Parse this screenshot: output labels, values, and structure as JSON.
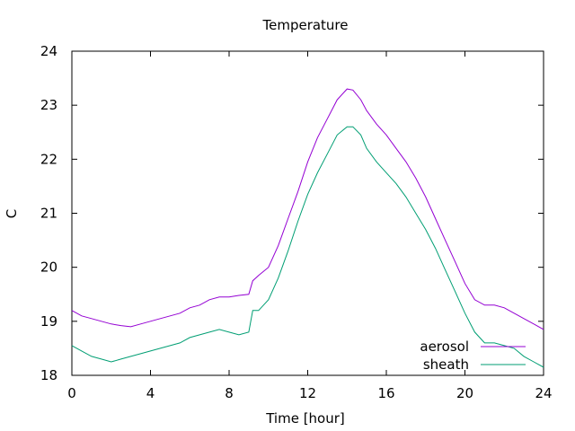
{
  "chart_data": {
    "type": "line",
    "title": "Temperature",
    "xlabel": "Time [hour]",
    "ylabel": "C",
    "xlim": [
      0,
      24
    ],
    "ylim": [
      18,
      24
    ],
    "xticks": [
      0,
      4,
      8,
      12,
      16,
      20,
      24
    ],
    "yticks": [
      18,
      19,
      20,
      21,
      22,
      23,
      24
    ],
    "grid": false,
    "legend_position": "bottom-right",
    "series": [
      {
        "name": "aerosol",
        "color": "#9400d3",
        "x": [
          0,
          0.5,
          1,
          1.5,
          2,
          2.5,
          3,
          3.5,
          4,
          4.5,
          5,
          5.5,
          6,
          6.5,
          7,
          7.5,
          8,
          8.5,
          9,
          9.2,
          9.5,
          10,
          10.5,
          11,
          11.5,
          12,
          12.5,
          13,
          13.5,
          14,
          14.3,
          14.7,
          15,
          15.5,
          16,
          16.5,
          17,
          17.5,
          18,
          18.5,
          19,
          19.5,
          20,
          20.5,
          21,
          21.5,
          22,
          22.5,
          23,
          23.5,
          24
        ],
        "y": [
          19.2,
          19.1,
          19.05,
          19.0,
          18.95,
          18.92,
          18.9,
          18.95,
          19.0,
          19.05,
          19.1,
          19.15,
          19.25,
          19.3,
          19.4,
          19.45,
          19.45,
          19.48,
          19.5,
          19.75,
          19.85,
          20.0,
          20.4,
          20.9,
          21.4,
          21.95,
          22.4,
          22.75,
          23.1,
          23.3,
          23.28,
          23.1,
          22.9,
          22.65,
          22.45,
          22.2,
          21.95,
          21.65,
          21.3,
          20.9,
          20.5,
          20.1,
          19.7,
          19.4,
          19.3,
          19.3,
          19.25,
          19.15,
          19.05,
          18.95,
          18.85
        ]
      },
      {
        "name": "sheath",
        "color": "#009e73",
        "x": [
          0,
          0.5,
          1,
          1.5,
          2,
          2.5,
          3,
          3.5,
          4,
          4.5,
          5,
          5.5,
          6,
          6.5,
          7,
          7.5,
          8,
          8.5,
          9,
          9.2,
          9.5,
          10,
          10.5,
          11,
          11.5,
          12,
          12.5,
          13,
          13.5,
          14,
          14.3,
          14.7,
          15,
          15.5,
          16,
          16.5,
          17,
          17.5,
          18,
          18.5,
          19,
          19.5,
          20,
          20.5,
          21,
          21.5,
          22,
          22.5,
          23,
          23.5,
          24
        ],
        "y": [
          18.55,
          18.45,
          18.35,
          18.3,
          18.25,
          18.3,
          18.35,
          18.4,
          18.45,
          18.5,
          18.55,
          18.6,
          18.7,
          18.75,
          18.8,
          18.85,
          18.8,
          18.75,
          18.8,
          19.2,
          19.2,
          19.4,
          19.8,
          20.3,
          20.85,
          21.35,
          21.75,
          22.1,
          22.45,
          22.6,
          22.6,
          22.45,
          22.2,
          21.95,
          21.75,
          21.55,
          21.3,
          21.0,
          20.7,
          20.35,
          19.95,
          19.55,
          19.15,
          18.8,
          18.6,
          18.6,
          18.55,
          18.5,
          18.35,
          18.25,
          18.15
        ]
      }
    ]
  }
}
